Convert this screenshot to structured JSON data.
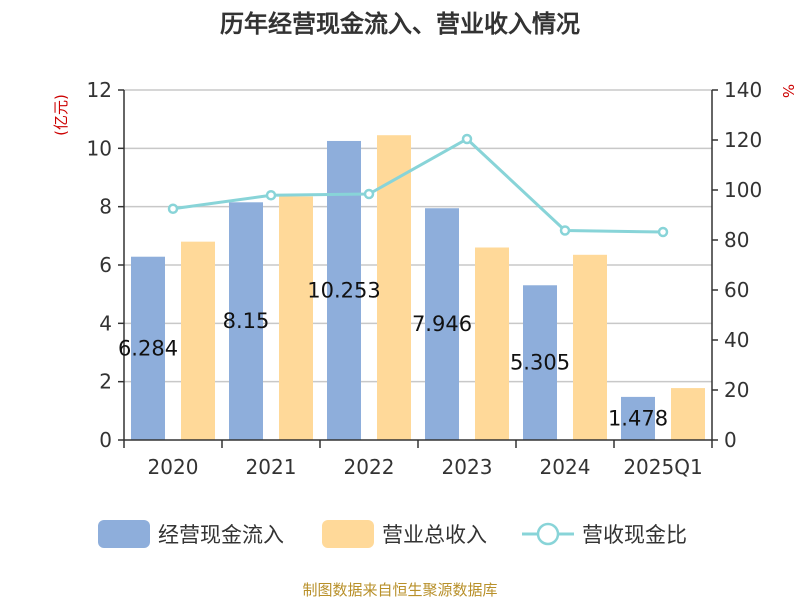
{
  "chart_data": {
    "type": "bar",
    "title": "历年经营现金流入、营业收入情况",
    "categories": [
      "2020",
      "2021",
      "2022",
      "2023",
      "2024",
      "2025Q1"
    ],
    "left_axis": {
      "unit": "(亿元)",
      "min": 0,
      "max": 12,
      "step": 2
    },
    "right_axis": {
      "unit": "%",
      "min": 0,
      "max": 140,
      "step": 20
    },
    "grid": true,
    "legend_position": "bottom",
    "series": [
      {
        "name": "经营现金流入",
        "type": "bar",
        "axis": "left",
        "color": "#8eaedb",
        "values": [
          6.284,
          8.15,
          10.253,
          7.946,
          5.305,
          1.478
        ],
        "labels": [
          "6.284",
          "8.15",
          "10.253",
          "7.946",
          "5.305",
          "1.478"
        ]
      },
      {
        "name": "营业总收入",
        "type": "bar",
        "axis": "left",
        "color": "#ffd999",
        "values": [
          6.8,
          8.35,
          10.45,
          6.6,
          6.35,
          1.78
        ]
      },
      {
        "name": "营收现金比",
        "type": "line",
        "axis": "right",
        "color": "#88d4d8",
        "values": [
          92.5,
          97.9,
          98.4,
          120.4,
          83.8,
          83.2
        ]
      }
    ]
  },
  "source_text": "制图数据来自恒生聚源数据库"
}
